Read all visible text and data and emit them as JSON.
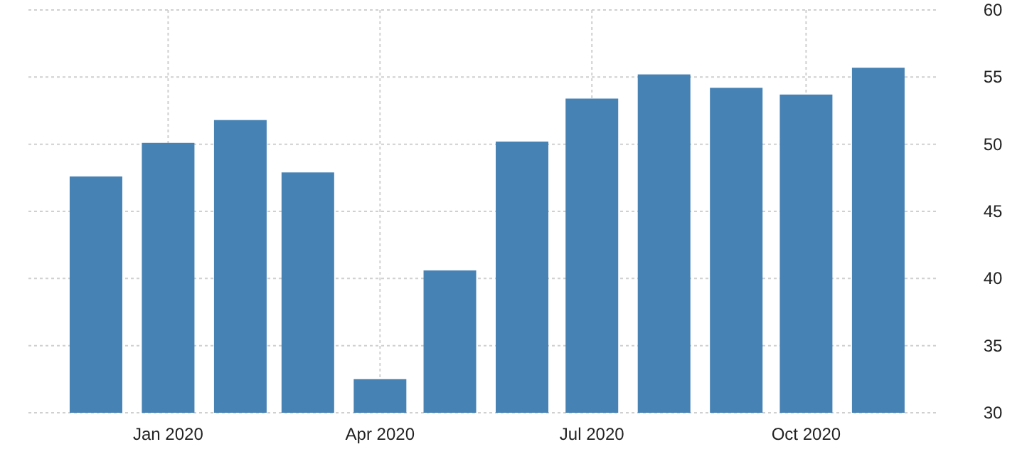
{
  "chart_data": {
    "type": "bar",
    "x": [
      "2019-12",
      "2020-01",
      "2020-02",
      "2020-03",
      "2020-04",
      "2020-05",
      "2020-06",
      "2020-07",
      "2020-08",
      "2020-09",
      "2020-10",
      "2020-11"
    ],
    "values": [
      47.6,
      50.1,
      51.8,
      47.9,
      32.5,
      40.6,
      50.2,
      53.4,
      55.2,
      54.2,
      53.7,
      55.7
    ],
    "color": "#4682b4",
    "xlim": [
      "2019-11-02",
      "2020-11-27"
    ],
    "xticks": [
      {
        "value": "2020-01",
        "label": "Jan 2020"
      },
      {
        "value": "2020-04",
        "label": "Apr 2020"
      },
      {
        "value": "2020-07",
        "label": "Jul 2020"
      },
      {
        "value": "2020-10",
        "label": "Oct 2020"
      }
    ],
    "ylim": [
      30,
      60
    ],
    "yticks": [
      30,
      35,
      40,
      45,
      50,
      55,
      60
    ],
    "grid": true
  }
}
